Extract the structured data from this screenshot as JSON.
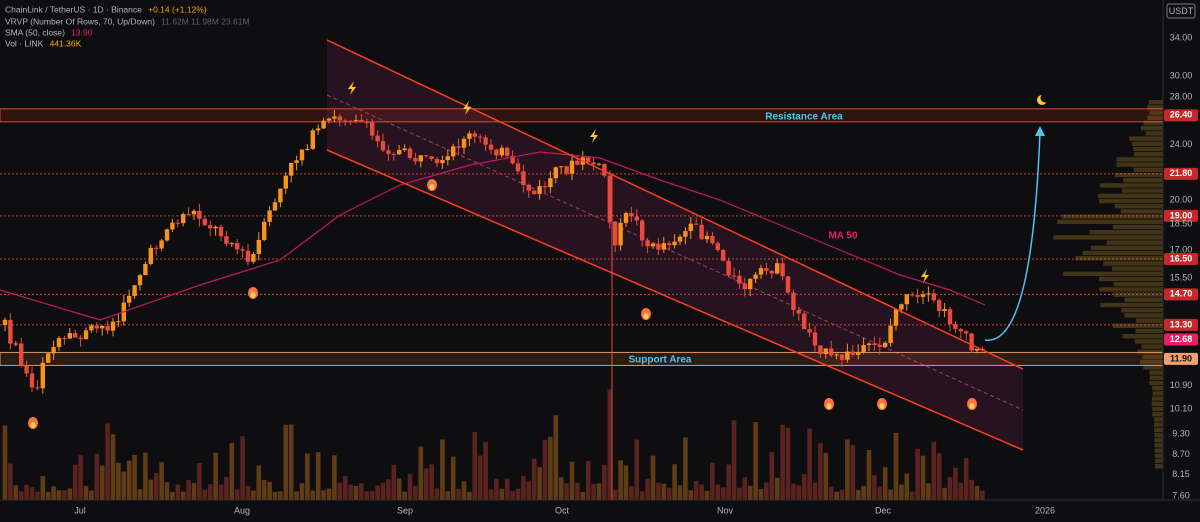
{
  "header": {
    "symbol": "ChainLink / TetherUS · 1D · Binance",
    "change": "+0.14 (+1.12%)",
    "indicators": [
      {
        "name": "VRVP (Number Of Rows, 70, Up/Down)",
        "value": "11.62M  11.98M  23.61M"
      },
      {
        "name": "SMA (50, close)",
        "value": "13.90"
      },
      {
        "name": "Vol · LINK",
        "value": "441.36K"
      }
    ]
  },
  "price_axis": {
    "currency": "USDT",
    "labels": [
      "34.00",
      "30.00",
      "28.00",
      "24.00",
      "20.00",
      "18.50",
      "17.00",
      "15.50",
      "10.90",
      "10.10",
      "9.30",
      "8.70",
      "8.15",
      "7.60"
    ],
    "level_tags": [
      "26.40",
      "21.80",
      "19.00",
      "16.50",
      "14.70",
      "13.30",
      "11.90"
    ],
    "last_price": "12.68"
  },
  "time_axis": {
    "labels": [
      "Jul",
      "Aug",
      "Sep",
      "Oct",
      "Nov",
      "Dec",
      "2026"
    ]
  },
  "annotations": {
    "resistance": "Resistance Area",
    "support": "Support Area",
    "ma": "MA 50"
  }
}
